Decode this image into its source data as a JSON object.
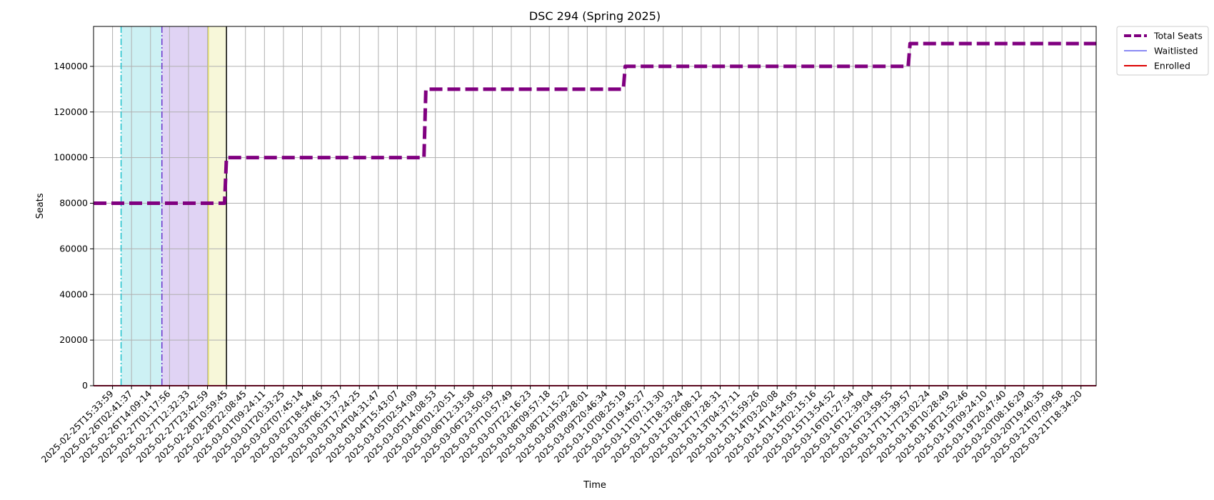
{
  "chart_data": {
    "type": "line",
    "title": "DSC 294 (Spring 2025)",
    "xlabel": "Time",
    "ylabel": "Seats",
    "ylim": [
      0,
      157500
    ],
    "yticks": [
      0,
      20000,
      40000,
      60000,
      80000,
      100000,
      120000,
      140000
    ],
    "grid": true,
    "legend": {
      "placement": "outside-top-right",
      "entries": [
        "Total Seats",
        "Waitlisted",
        "Enrolled"
      ]
    },
    "x_tick_labels": [
      "2025-02-25T15:33:59",
      "2025-02-26T02:41:37",
      "2025-02-26T14:09:14",
      "2025-02-27T01:17:56",
      "2025-02-27T12:32:33",
      "2025-02-27T23:42:59",
      "2025-02-28T10:59:45",
      "2025-02-28T22:08:45",
      "2025-03-01T09:24:11",
      "2025-03-01T20:33:25",
      "2025-03-02T07:45:14",
      "2025-03-02T18:54:46",
      "2025-03-03T06:13:37",
      "2025-03-03T17:24:25",
      "2025-03-04T04:31:47",
      "2025-03-04T15:43:07",
      "2025-03-05T02:54:09",
      "2025-03-05T14:08:53",
      "2025-03-06T01:20:51",
      "2025-03-06T12:33:58",
      "2025-03-06T23:50:59",
      "2025-03-07T10:57:49",
      "2025-03-07T22:16:23",
      "2025-03-08T09:57:18",
      "2025-03-08T21:15:22",
      "2025-03-09T09:28:01",
      "2025-03-09T20:46:34",
      "2025-03-10T08:25:19",
      "2025-03-10T19:45:27",
      "2025-03-11T07:13:30",
      "2025-03-11T18:33:24",
      "2025-03-12T06:08:12",
      "2025-03-12T17:28:31",
      "2025-03-13T04:37:11",
      "2025-03-13T15:59:26",
      "2025-03-14T03:20:08",
      "2025-03-14T14:54:05",
      "2025-03-15T02:15:16",
      "2025-03-15T13:54:52",
      "2025-03-16T01:27:54",
      "2025-03-16T12:39:04",
      "2025-03-16T23:59:55",
      "2025-03-17T11:39:57",
      "2025-03-17T23:02:24",
      "2025-03-18T10:28:49",
      "2025-03-18T21:52:46",
      "2025-03-19T09:24:10",
      "2025-03-19T20:47:40",
      "2025-03-20T08:16:29",
      "2025-03-20T19:40:35",
      "2025-03-21T07:09:58",
      "2025-03-21T18:34:20"
    ],
    "x_range_ticks": [
      -1,
      51.8
    ],
    "series": [
      {
        "name": "Total Seats",
        "color": "#800080",
        "style": "dashed",
        "x": [
          -1,
          5.9,
          6.0,
          16.4,
          16.5,
          26.9,
          27.0,
          41.9,
          42.0,
          51.8
        ],
        "values": [
          80000,
          80000,
          100000,
          100000,
          130000,
          130000,
          140000,
          140000,
          150000,
          150000
        ]
      },
      {
        "name": "Waitlisted",
        "color": "#4444ee",
        "style": "solid",
        "x": [
          -1,
          51.8
        ],
        "values": [
          0,
          0
        ]
      },
      {
        "name": "Enrolled",
        "color": "#dd0000",
        "style": "solid",
        "x": [
          -1,
          51.8
        ],
        "values": [
          0,
          0
        ]
      }
    ],
    "shaded_regions": [
      {
        "x_start": 0.45,
        "x_end": 2.6,
        "color": "#cdf1f4"
      },
      {
        "x_start": 2.6,
        "x_end": 5.05,
        "color": "#e0d3f4"
      },
      {
        "x_start": 5.05,
        "x_end": 6.0,
        "color": "#f7f7d9"
      }
    ],
    "vertical_lines": [
      {
        "x": 0.45,
        "color": "#1ec2cc",
        "style": "dashdot"
      },
      {
        "x": 2.6,
        "color": "#6a33cc",
        "style": "dashdot"
      },
      {
        "x": 5.05,
        "color": "#e0d86a",
        "style": "solid"
      },
      {
        "x": 6.0,
        "color": "#000000",
        "style": "solid"
      }
    ]
  }
}
